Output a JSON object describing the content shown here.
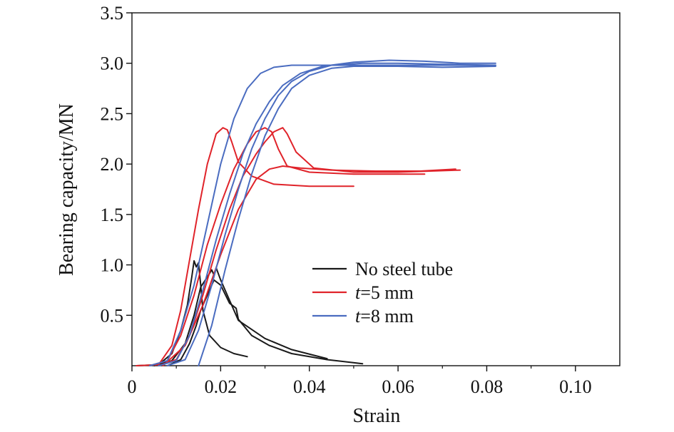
{
  "chart_data": {
    "type": "line",
    "title": "",
    "xlabel": "Strain",
    "ylabel": "Bearing capacity/MN",
    "xlim": [
      0,
      0.11
    ],
    "ylim": [
      0,
      3.5
    ],
    "x_ticks": [
      "0",
      "0.02",
      "0.04",
      "0.06",
      "0.08",
      "0.10"
    ],
    "x_tick_values": [
      0,
      0.02,
      0.04,
      0.06,
      0.08,
      0.1
    ],
    "y_ticks": [
      "0.5",
      "1.0",
      "1.5",
      "2.0",
      "2.5",
      "3.0",
      "3.5"
    ],
    "y_tick_values": [
      0.5,
      1.0,
      1.5,
      2.0,
      2.5,
      3.0,
      3.5
    ],
    "grid": false,
    "legend_position": "center",
    "legend": [
      {
        "prefix": "No steel tube",
        "italic": "",
        "suffix": "",
        "color": "#1a1a1a"
      },
      {
        "prefix": "",
        "italic": "t",
        "suffix": "=5 mm",
        "color": "#e0232a"
      },
      {
        "prefix": "",
        "italic": "t",
        "suffix": "=8 mm",
        "color": "#4a6cc0"
      }
    ],
    "series": [
      {
        "group": "No steel tube",
        "color": "#1a1a1a",
        "x": [
          0.001,
          0.006,
          0.009,
          0.011,
          0.0125,
          0.0135,
          0.014,
          0.0145,
          0.015,
          0.0155,
          0.016,
          0.0175,
          0.02,
          0.023,
          0.026
        ],
        "y": [
          0,
          0.01,
          0.12,
          0.35,
          0.6,
          0.88,
          1.04,
          0.98,
          1.02,
          0.8,
          0.55,
          0.3,
          0.18,
          0.12,
          0.09
        ]
      },
      {
        "group": "No steel tube",
        "color": "#1a1a1a",
        "x": [
          0.005,
          0.009,
          0.012,
          0.014,
          0.0155,
          0.017,
          0.018,
          0.0185,
          0.019,
          0.02,
          0.022,
          0.024,
          0.03,
          0.036,
          0.044
        ],
        "y": [
          0,
          0.05,
          0.22,
          0.5,
          0.78,
          0.88,
          0.95,
          0.9,
          0.97,
          0.85,
          0.65,
          0.45,
          0.27,
          0.16,
          0.07
        ]
      },
      {
        "group": "No steel tube",
        "color": "#1a1a1a",
        "x": [
          0.008,
          0.011,
          0.013,
          0.0145,
          0.0155,
          0.017,
          0.0185,
          0.02,
          0.022,
          0.0235,
          0.024,
          0.027,
          0.031,
          0.036,
          0.044,
          0.052
        ],
        "y": [
          0,
          0.06,
          0.22,
          0.4,
          0.55,
          0.7,
          0.85,
          0.8,
          0.62,
          0.57,
          0.46,
          0.3,
          0.2,
          0.12,
          0.06,
          0.02
        ]
      },
      {
        "group": "t=5 mm",
        "color": "#e0232a",
        "x": [
          0.001,
          0.006,
          0.009,
          0.011,
          0.013,
          0.015,
          0.017,
          0.019,
          0.0205,
          0.0215,
          0.0225,
          0.024,
          0.027,
          0.032,
          0.04,
          0.05
        ],
        "y": [
          0,
          0.01,
          0.2,
          0.55,
          1.05,
          1.55,
          2.0,
          2.3,
          2.36,
          2.34,
          2.22,
          2.02,
          1.88,
          1.8,
          1.78,
          1.78
        ]
      },
      {
        "group": "t=5 mm",
        "color": "#e0232a",
        "x": [
          0.004,
          0.008,
          0.011,
          0.014,
          0.017,
          0.02,
          0.023,
          0.026,
          0.028,
          0.03,
          0.0315,
          0.033,
          0.035,
          0.04,
          0.05,
          0.066
        ],
        "y": [
          0,
          0.05,
          0.3,
          0.7,
          1.2,
          1.6,
          1.95,
          2.2,
          2.32,
          2.36,
          2.32,
          2.15,
          1.98,
          1.92,
          1.9,
          1.9
        ]
      },
      {
        "group": "t=5 mm",
        "color": "#e0232a",
        "x": [
          0.006,
          0.01,
          0.013,
          0.016,
          0.019,
          0.022,
          0.025,
          0.028,
          0.03,
          0.032,
          0.034,
          0.035,
          0.037,
          0.041,
          0.05,
          0.06,
          0.074
        ],
        "y": [
          0,
          0.06,
          0.3,
          0.7,
          1.15,
          1.55,
          1.88,
          2.1,
          2.22,
          2.32,
          2.36,
          2.3,
          2.12,
          1.96,
          1.92,
          1.92,
          1.94
        ]
      },
      {
        "group": "t=5 mm",
        "color": "#e0232a",
        "x": [
          0.007,
          0.012,
          0.016,
          0.02,
          0.024,
          0.028,
          0.031,
          0.034,
          0.038,
          0.045,
          0.055,
          0.065,
          0.073
        ],
        "y": [
          0,
          0.2,
          0.6,
          1.1,
          1.55,
          1.85,
          1.95,
          1.98,
          1.96,
          1.94,
          1.93,
          1.93,
          1.95
        ]
      },
      {
        "group": "t=8 mm",
        "color": "#4a6cc0",
        "x": [
          0.004,
          0.008,
          0.011,
          0.014,
          0.017,
          0.02,
          0.023,
          0.026,
          0.029,
          0.032,
          0.036,
          0.042,
          0.05,
          0.06,
          0.07,
          0.082
        ],
        "y": [
          0,
          0.05,
          0.35,
          0.8,
          1.4,
          2.0,
          2.45,
          2.75,
          2.9,
          2.96,
          2.98,
          2.98,
          2.98,
          2.98,
          2.98,
          2.98
        ]
      },
      {
        "group": "t=8 mm",
        "color": "#4a6cc0",
        "x": [
          0.006,
          0.01,
          0.013,
          0.016,
          0.019,
          0.022,
          0.025,
          0.028,
          0.031,
          0.034,
          0.038,
          0.043,
          0.05,
          0.058,
          0.066,
          0.074,
          0.082
        ],
        "y": [
          0,
          0.05,
          0.3,
          0.75,
          1.25,
          1.7,
          2.1,
          2.4,
          2.62,
          2.78,
          2.9,
          2.97,
          3.01,
          3.03,
          3.02,
          3.0,
          3.0
        ]
      },
      {
        "group": "t=8 mm",
        "color": "#4a6cc0",
        "x": [
          0.008,
          0.012,
          0.015,
          0.018,
          0.021,
          0.024,
          0.027,
          0.03,
          0.033,
          0.036,
          0.04,
          0.045,
          0.052,
          0.06,
          0.07,
          0.082
        ],
        "y": [
          0,
          0.06,
          0.35,
          0.8,
          1.3,
          1.75,
          2.15,
          2.45,
          2.68,
          2.82,
          2.92,
          2.98,
          3.0,
          3.0,
          2.99,
          2.98
        ]
      },
      {
        "group": "t=8 mm",
        "color": "#4a6cc0",
        "x": [
          0.015,
          0.018,
          0.021,
          0.024,
          0.027,
          0.03,
          0.033,
          0.036,
          0.04,
          0.045,
          0.05,
          0.06,
          0.07,
          0.082
        ],
        "y": [
          0,
          0.4,
          0.95,
          1.45,
          1.9,
          2.28,
          2.55,
          2.75,
          2.88,
          2.95,
          2.97,
          2.97,
          2.96,
          2.97
        ]
      }
    ]
  }
}
